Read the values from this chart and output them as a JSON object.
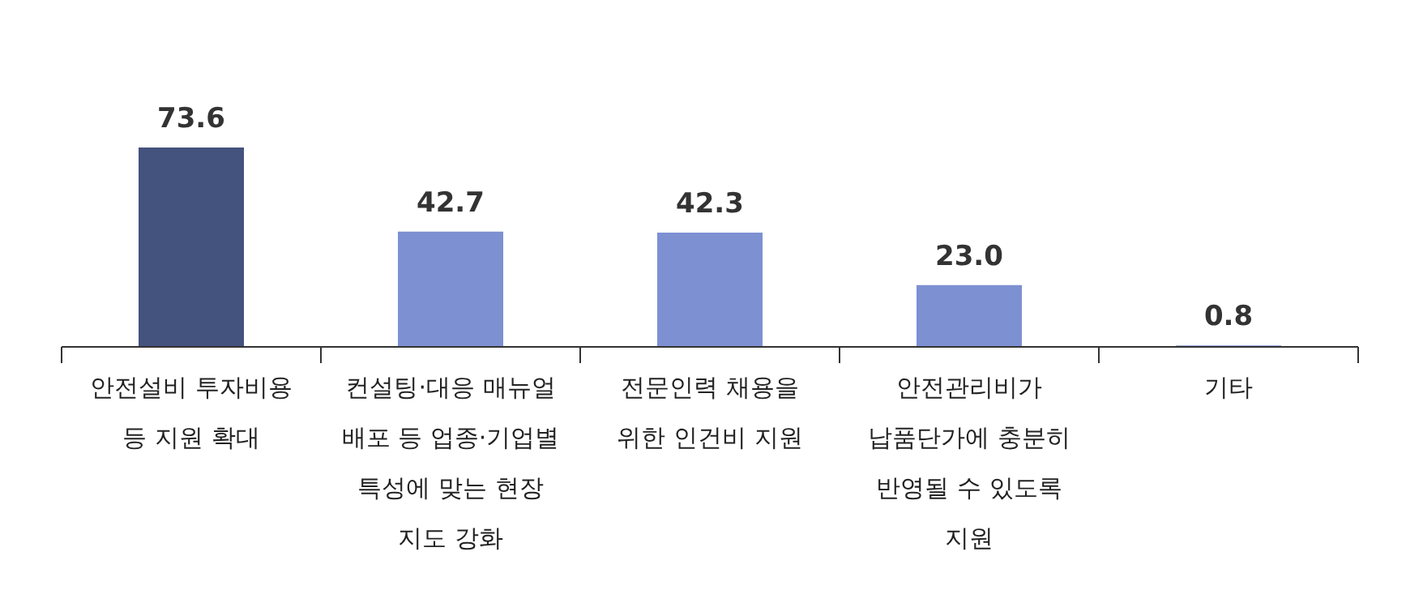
{
  "chart_data": {
    "type": "bar",
    "categories": [
      "안전설비 투자비용\n등 지원 확대",
      "컨설팅·대응 매뉴얼\n배포 등 업종·기업별\n특성에 맞는 현장\n지도 강화",
      "전문인력 채용을\n위한 인건비 지원",
      "안전관리비가\n납품단가에 충분히\n반영될 수 있도록\n지원",
      "기타"
    ],
    "values": [
      73.6,
      42.7,
      42.3,
      23.0,
      0.8
    ],
    "colors": [
      "#44527e",
      "#7d90d2",
      "#7d90d2",
      "#7d90d2",
      "#7d90d2"
    ],
    "value_labels": [
      "73.6",
      "42.7",
      "42.3",
      "23.0",
      "0.8"
    ]
  }
}
